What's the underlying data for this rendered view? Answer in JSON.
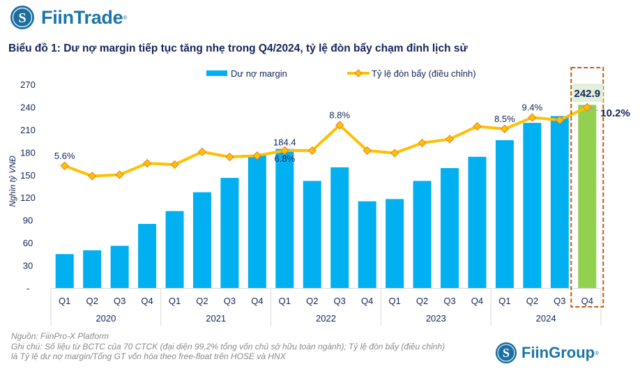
{
  "header": {
    "brand": "FiinTrade",
    "title": "Biểu đồ 1: Dư nợ margin tiếp tục tăng nhẹ trong Q4/2024, tỷ lệ đòn bẩy chạm đỉnh lịch sử"
  },
  "chart_data": {
    "type": "bar+line",
    "ylabel": "Nghìn tỷ VNĐ",
    "ylim": [
      0,
      270
    ],
    "y_ticks": [
      "-",
      "30",
      "60",
      "90",
      "120",
      "150",
      "180",
      "210",
      "240",
      "270"
    ],
    "y2lim": [
      -4,
      12
    ],
    "grid": false,
    "legend_position": "top",
    "years": [
      "2020",
      "2021",
      "2022",
      "2023",
      "2024"
    ],
    "categories": [
      "Q1",
      "Q2",
      "Q3",
      "Q4",
      "Q1",
      "Q2",
      "Q3",
      "Q4",
      "Q1",
      "Q2",
      "Q3",
      "Q4",
      "Q1",
      "Q2",
      "Q3",
      "Q4",
      "Q1",
      "Q2",
      "Q3",
      "Q4"
    ],
    "series": [
      {
        "name": "Dư nợ margin",
        "type": "bar",
        "color": "#00b0f0",
        "highlight_color": "#92d050",
        "values": [
          45,
          50,
          56,
          85,
          102,
          127,
          146,
          176,
          184.4,
          142,
          160,
          115,
          118,
          142,
          159,
          174,
          196,
          219,
          228,
          242.9
        ]
      },
      {
        "name": "Tỷ lệ đòn bẩy (điều chỉnh)",
        "type": "line",
        "color": "#ffc000",
        "marker_color": "#f4b183",
        "unit": "%",
        "values": [
          5.6,
          4.8,
          4.9,
          5.8,
          5.7,
          6.7,
          6.3,
          6.4,
          6.8,
          6.8,
          8.8,
          6.8,
          6.6,
          7.4,
          7.7,
          8.7,
          8.5,
          9.4,
          9.2,
          10.2
        ]
      }
    ],
    "annotations": {
      "bar_labels": [
        {
          "index": 8,
          "text": "184.4"
        },
        {
          "index": 19,
          "text": "242.9"
        }
      ],
      "line_labels": [
        {
          "index": 0,
          "text": "5.6%"
        },
        {
          "index": 8,
          "text": "6.8%"
        },
        {
          "index": 10,
          "text": "8.8%"
        },
        {
          "index": 16,
          "text": "8.5%"
        },
        {
          "index": 17,
          "text": "9.4%"
        },
        {
          "index": 19,
          "text": "10.2%"
        }
      ],
      "highlight_box_index": 19
    }
  },
  "footer": {
    "source": "Nguồn: FiinPro-X Platform",
    "note1": "Ghi chú: Số liệu từ BCTC của 70 CTCK (đại diện 99,2% tổng vốn chủ sở hữu toàn ngành); Tỷ lệ đòn bẩy (điều chỉnh)",
    "note2": "là Tỷ lệ dư nợ margin/Tổng GT vốn hóa theo free-float trên HOSE và HNX",
    "brand": "FiinGroup"
  }
}
